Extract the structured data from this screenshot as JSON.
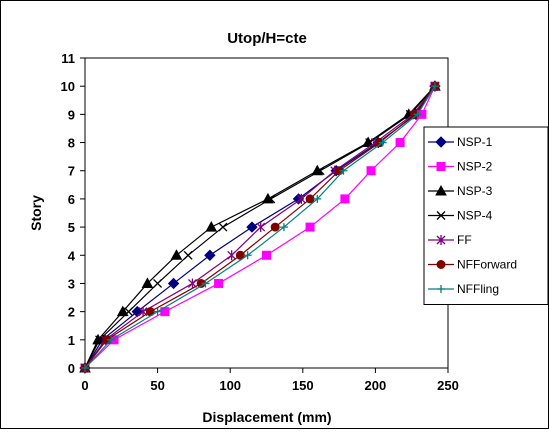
{
  "chart_data": {
    "type": "line",
    "title": "Utop/H=cte",
    "xlabel": "Displacement (mm)",
    "ylabel": "Story",
    "xlim": [
      0,
      250
    ],
    "ylim": [
      0,
      11
    ],
    "xticks": [
      0,
      50,
      100,
      150,
      200,
      250
    ],
    "yticks": [
      0,
      1,
      2,
      3,
      4,
      5,
      6,
      7,
      8,
      9,
      10,
      11
    ],
    "grid": false,
    "legend_position": "right",
    "series": [
      {
        "name": "NSP-1",
        "color": "#000080",
        "marker": "diamond",
        "x": [
          0,
          12,
          36,
          61,
          86,
          115,
          147,
          173,
          202,
          228,
          241
        ],
        "y": [
          0,
          1,
          2,
          3,
          4,
          5,
          6,
          7,
          8,
          9,
          10
        ]
      },
      {
        "name": "NSP-2",
        "color": "#ff00ff",
        "marker": "square",
        "x": [
          0,
          20,
          55,
          92,
          125,
          155,
          179,
          197,
          217,
          232,
          241
        ],
        "y": [
          0,
          1,
          2,
          3,
          4,
          5,
          6,
          7,
          8,
          9,
          10
        ]
      },
      {
        "name": "NSP-3",
        "color": "#000000",
        "marker": "triangle",
        "x": [
          0,
          9,
          26,
          43,
          63,
          87,
          126,
          160,
          195,
          223,
          241
        ],
        "y": [
          0,
          1,
          2,
          3,
          4,
          5,
          6,
          7,
          8,
          9,
          10
        ]
      },
      {
        "name": "NSP-4",
        "color": "#000000",
        "marker": "x",
        "x": [
          0,
          10,
          30,
          50,
          71,
          95,
          128,
          162,
          196,
          224,
          241
        ],
        "y": [
          0,
          1,
          2,
          3,
          4,
          5,
          6,
          7,
          8,
          9,
          10
        ]
      },
      {
        "name": "FF",
        "color": "#800080",
        "marker": "star",
        "x": [
          0,
          14,
          40,
          74,
          101,
          121,
          149,
          172,
          200,
          226,
          241
        ],
        "y": [
          0,
          1,
          2,
          3,
          4,
          5,
          6,
          7,
          8,
          9,
          10
        ]
      },
      {
        "name": "NFForward",
        "color": "#800000",
        "marker": "circle",
        "x": [
          0,
          15,
          45,
          80,
          107,
          131,
          155,
          175,
          203,
          227,
          241
        ],
        "y": [
          0,
          1,
          2,
          3,
          4,
          5,
          6,
          7,
          8,
          9,
          10
        ]
      },
      {
        "name": "NFFling",
        "color": "#008080",
        "marker": "plus",
        "x": [
          0,
          18,
          50,
          83,
          112,
          137,
          160,
          178,
          205,
          229,
          241
        ],
        "y": [
          0,
          1,
          2,
          3,
          4,
          5,
          6,
          7,
          8,
          9,
          10
        ]
      }
    ]
  }
}
